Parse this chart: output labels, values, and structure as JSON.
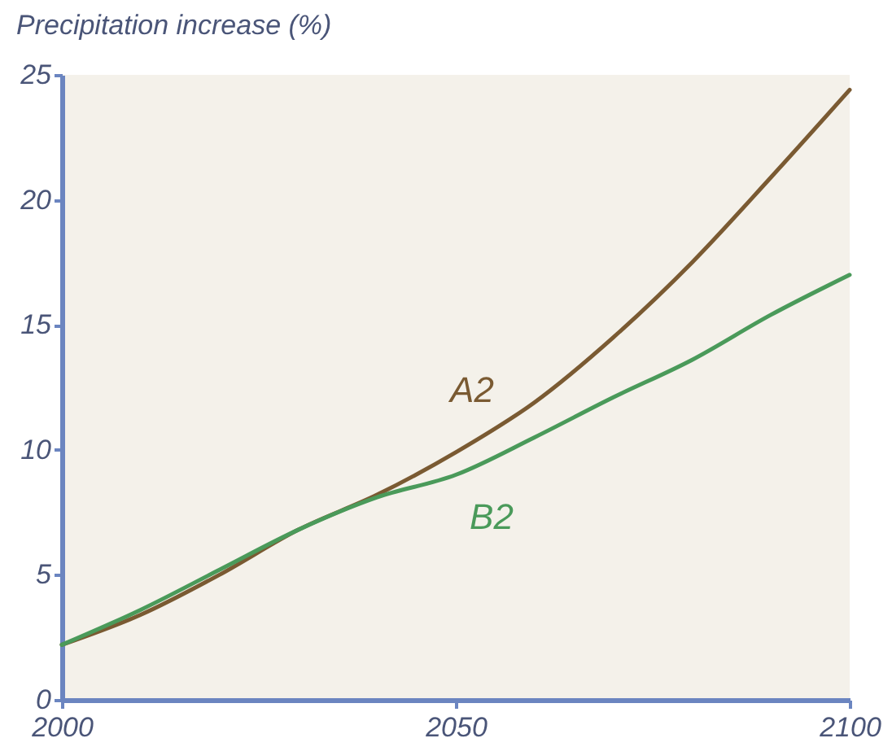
{
  "chart_data": {
    "type": "line",
    "ylabel": "Precipitation increase (%)",
    "x": [
      2000,
      2010,
      2020,
      2030,
      2040,
      2050,
      2060,
      2070,
      2080,
      2090,
      2100
    ],
    "series": [
      {
        "name": "A2",
        "color": "#7a5a32",
        "values": [
          2.2,
          3.4,
          5.0,
          6.8,
          8.2,
          9.9,
          11.9,
          14.5,
          17.5,
          20.9,
          24.4
        ]
      },
      {
        "name": "B2",
        "color": "#4a9a5a",
        "values": [
          2.2,
          3.6,
          5.2,
          6.8,
          8.1,
          9.0,
          10.5,
          12.1,
          13.6,
          15.4,
          17.0
        ]
      }
    ],
    "xlim": [
      2000,
      2100
    ],
    "xticks": [
      2000,
      2050,
      2100
    ],
    "ylim": [
      0,
      25
    ],
    "yticks": [
      0,
      5,
      10,
      15,
      20,
      25
    ],
    "grid": false,
    "legend": false,
    "marker": "none",
    "line_style": "solid"
  }
}
